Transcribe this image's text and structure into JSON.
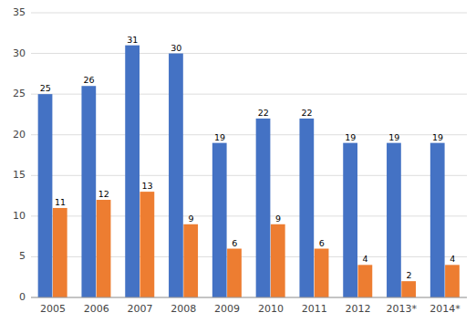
{
  "chart_data": {
    "type": "bar",
    "categories": [
      "2005",
      "2006",
      "2007",
      "2008",
      "2009",
      "2010",
      "2011",
      "2012",
      "2013*",
      "2014*"
    ],
    "series": [
      {
        "color": "#4472C4",
        "values": [
          25,
          26,
          31,
          30,
          19,
          22,
          22,
          19,
          19,
          19
        ]
      },
      {
        "color": "#ED7D31",
        "values": [
          11,
          12,
          13,
          9,
          6,
          9,
          6,
          4,
          2,
          4
        ]
      }
    ],
    "ylim": [
      0,
      35
    ],
    "yticks": [
      0,
      5,
      10,
      15,
      20,
      25,
      30,
      35
    ],
    "grid": true,
    "data_labels": true
  }
}
